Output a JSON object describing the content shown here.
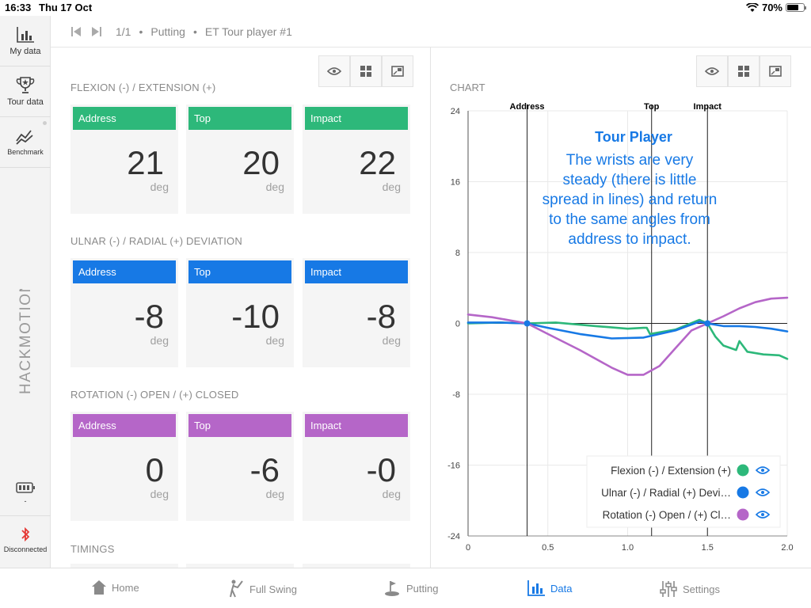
{
  "status": {
    "time": "16:33",
    "date": "Thu 17 Oct",
    "battery": "70%",
    "battery_level": 0.7
  },
  "sidebar": {
    "items": [
      {
        "label": "My data",
        "icon": "bar-chart-icon"
      },
      {
        "label": "Tour data",
        "icon": "trophy-icon"
      },
      {
        "label": "Benchmark",
        "icon": "trend-icon"
      }
    ],
    "brand": "HACKMOTION",
    "sensor_label": "-",
    "bluetooth_label": "Disconnected"
  },
  "toolbar": {
    "counter": "1/1",
    "sep1": "•",
    "mode": "Putting",
    "sep2": "•",
    "session": "ET Tour player #1"
  },
  "colors": {
    "flexion": "#2db87a",
    "ulnar": "#1779e5",
    "rotation": "#b566c8",
    "accent": "#1779e5"
  },
  "sections": [
    {
      "title": "FLEXION (-) / EXTENSION (+)",
      "color": "#2db87a",
      "cards": [
        {
          "label": "Address",
          "value": "21",
          "unit": "deg"
        },
        {
          "label": "Top",
          "value": "20",
          "unit": "deg"
        },
        {
          "label": "Impact",
          "value": "22",
          "unit": "deg"
        }
      ]
    },
    {
      "title": "ULNAR (-) / RADIAL (+) DEVIATION",
      "color": "#1779e5",
      "cards": [
        {
          "label": "Address",
          "value": "-8",
          "unit": "deg"
        },
        {
          "label": "Top",
          "value": "-10",
          "unit": "deg"
        },
        {
          "label": "Impact",
          "value": "-8",
          "unit": "deg"
        }
      ]
    },
    {
      "title": "ROTATION (-) OPEN / (+) CLOSED",
      "color": "#b566c8",
      "cards": [
        {
          "label": "Address",
          "value": "0",
          "unit": "deg"
        },
        {
          "label": "Top",
          "value": "-6",
          "unit": "deg"
        },
        {
          "label": "Impact",
          "value": "-0",
          "unit": "deg"
        }
      ]
    }
  ],
  "timings_title": "TIMINGS",
  "chart_section_title": "CHART",
  "chart_data": {
    "type": "line",
    "xlim": [
      0,
      2.0
    ],
    "ylim": [
      -24,
      24
    ],
    "xticks": [
      0,
      0.5,
      1.0,
      1.5,
      2.0
    ],
    "xtick_labels": [
      "0",
      "0.5",
      "1.0",
      "1.5",
      "2.0"
    ],
    "yticks": [
      -24,
      -16,
      -8,
      0,
      8,
      16,
      24
    ],
    "ytick_labels": [
      "-24",
      "-16",
      "-8",
      "0",
      "8",
      "16",
      "24"
    ],
    "grid": true,
    "events": [
      {
        "label": "Address",
        "x": 0.37
      },
      {
        "label": "Top",
        "x": 1.15
      },
      {
        "label": "Impact",
        "x": 1.5
      }
    ],
    "annotation_title": "Tour Player",
    "annotation_lines": [
      "The wrists are very",
      "steady (there is little",
      "spread in lines) and return",
      "to the same angles from",
      "address to impact."
    ],
    "legend_position": "bottom-right",
    "series": [
      {
        "name": "Flexion (-) / Extension (+)",
        "legend_label": "Flexion (-) / Extension (+)",
        "color": "#2db87a",
        "x": [
          0,
          0.2,
          0.37,
          0.55,
          0.8,
          1.0,
          1.1,
          1.12,
          1.14,
          1.3,
          1.45,
          1.5,
          1.55,
          1.6,
          1.68,
          1.7,
          1.75,
          1.85,
          1.95,
          2.0
        ],
        "y": [
          0,
          0.1,
          0,
          0.1,
          -0.3,
          -0.6,
          -0.5,
          -0.5,
          -1.2,
          -0.7,
          0.4,
          0,
          -1.5,
          -2.5,
          -3.0,
          -2.0,
          -3.2,
          -3.5,
          -3.6,
          -4.0
        ]
      },
      {
        "name": "Ulnar (-) / Radial (+) Deviation",
        "legend_label": "Ulnar (-) / Radial (+) Devi…",
        "color": "#1779e5",
        "x": [
          0,
          0.2,
          0.37,
          0.5,
          0.7,
          0.9,
          1.1,
          1.3,
          1.45,
          1.5,
          1.6,
          1.7,
          1.8,
          1.9,
          2.0
        ],
        "y": [
          0.1,
          0.1,
          0,
          -0.5,
          -1.2,
          -1.7,
          -1.6,
          -0.8,
          0.2,
          0,
          -0.3,
          -0.3,
          -0.4,
          -0.6,
          -0.9
        ]
      },
      {
        "name": "Rotation (-) Open / (+) Closed",
        "legend_label": "Rotation (-) Open / (+) Cl…",
        "color": "#b566c8",
        "x": [
          0,
          0.15,
          0.37,
          0.5,
          0.7,
          0.9,
          1.0,
          1.1,
          1.2,
          1.3,
          1.4,
          1.5,
          1.6,
          1.7,
          1.8,
          1.9,
          2.0
        ],
        "y": [
          1.0,
          0.7,
          0,
          -1.2,
          -3.0,
          -5.0,
          -5.8,
          -5.8,
          -4.8,
          -2.8,
          -0.8,
          0,
          0.8,
          1.7,
          2.4,
          2.8,
          2.9
        ]
      }
    ]
  },
  "tabs": [
    {
      "label": "Home",
      "icon": "home-icon"
    },
    {
      "label": "Full Swing",
      "icon": "golfer-icon"
    },
    {
      "label": "Putting",
      "icon": "putting-icon"
    },
    {
      "label": "Data",
      "icon": "data-chart-icon"
    },
    {
      "label": "Settings",
      "icon": "sliders-icon"
    }
  ]
}
